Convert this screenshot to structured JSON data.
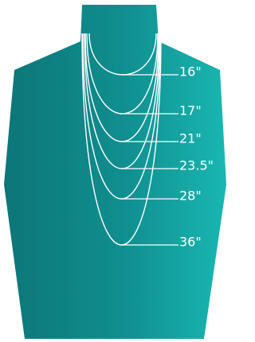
{
  "lengths": [
    {
      "label": "16\""
    },
    {
      "label": "17\""
    },
    {
      "label": "21\""
    },
    {
      "label": "23.5\""
    },
    {
      "label": "28\""
    },
    {
      "label": "36\""
    }
  ]
}
